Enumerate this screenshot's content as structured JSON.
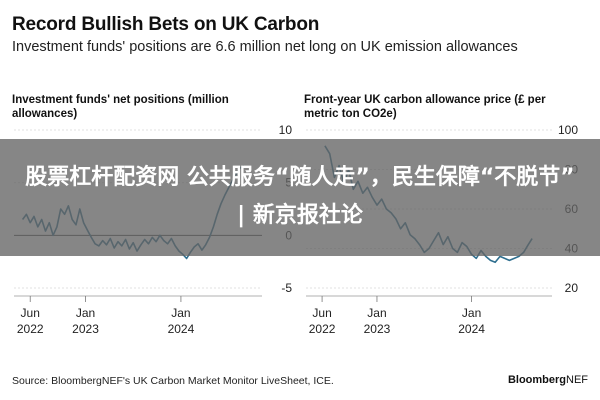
{
  "header": {
    "title": "Record Bullish Bets on UK Carbon",
    "subtitle": "Investment funds' positions are 6.6 million net long on UK emission allowances"
  },
  "chart_data": [
    {
      "type": "line",
      "title": "Investment funds' net positions (million allowances)",
      "y_axis_side": "right",
      "ylim": [
        -5,
        10
      ],
      "y_ticks": [
        10,
        5,
        0,
        -5
      ],
      "x_ticks": [
        {
          "label_top": "Jun",
          "label_bottom": "2022",
          "t": 2022.42
        },
        {
          "label_top": "Jan",
          "label_bottom": "2023",
          "t": 2023.0
        },
        {
          "label_top": "Jan",
          "label_bottom": "2024",
          "t": 2024.0
        }
      ],
      "xlim": [
        2022.25,
        2024.85
      ],
      "series": [
        {
          "name": "Net positions",
          "x": [
            2022.34,
            2022.38,
            2022.42,
            2022.46,
            2022.5,
            2022.54,
            2022.58,
            2022.62,
            2022.66,
            2022.7,
            2022.74,
            2022.78,
            2022.82,
            2022.86,
            2022.9,
            2022.94,
            2022.98,
            2023.02,
            2023.06,
            2023.1,
            2023.14,
            2023.18,
            2023.22,
            2023.26,
            2023.3,
            2023.34,
            2023.38,
            2023.42,
            2023.46,
            2023.5,
            2023.54,
            2023.58,
            2023.62,
            2023.66,
            2023.7,
            2023.74,
            2023.78,
            2023.82,
            2023.86,
            2023.9,
            2023.94,
            2023.98,
            2024.02,
            2024.06,
            2024.1,
            2024.14,
            2024.18,
            2024.22,
            2024.26,
            2024.3,
            2024.34,
            2024.38,
            2024.42,
            2024.46,
            2024.5,
            2024.54,
            2024.58,
            2024.62,
            2024.66
          ],
          "values": [
            1.5,
            2.0,
            1.2,
            1.8,
            0.8,
            1.5,
            0.4,
            1.2,
            0.0,
            0.8,
            2.5,
            2.0,
            2.8,
            1.5,
            1.0,
            2.5,
            1.2,
            0.5,
            -0.2,
            -0.8,
            -1.0,
            -0.5,
            -0.9,
            -0.3,
            -1.2,
            -0.6,
            -1.0,
            -0.4,
            -1.3,
            -0.7,
            -1.5,
            -0.9,
            -0.4,
            -0.8,
            -0.2,
            -0.6,
            0.0,
            -0.5,
            -0.8,
            -0.3,
            -1.0,
            -1.5,
            -1.8,
            -2.2,
            -1.6,
            -1.1,
            -0.8,
            -1.4,
            -0.9,
            -0.2,
            0.8,
            2.0,
            3.0,
            3.8,
            4.5,
            5.2,
            5.8,
            6.4,
            6.6
          ]
        }
      ]
    },
    {
      "type": "line",
      "title": "Front-year UK carbon allowance price (£ per metric ton CO2e)",
      "y_axis_side": "right",
      "ylim": [
        20,
        100
      ],
      "y_ticks": [
        100,
        80,
        60,
        40,
        20
      ],
      "x_ticks": [
        {
          "label_top": "Jun",
          "label_bottom": "2022",
          "t": 2022.42
        },
        {
          "label_top": "Jan",
          "label_bottom": "2023",
          "t": 2023.0
        },
        {
          "label_top": "Jan",
          "label_bottom": "2024",
          "t": 2024.0
        }
      ],
      "xlim": [
        2022.25,
        2024.85
      ],
      "series": [
        {
          "name": "Price",
          "x": [
            2022.45,
            2022.5,
            2022.55,
            2022.6,
            2022.65,
            2022.7,
            2022.75,
            2022.8,
            2022.85,
            2022.9,
            2022.95,
            2023.0,
            2023.05,
            2023.1,
            2023.15,
            2023.2,
            2023.25,
            2023.3,
            2023.35,
            2023.4,
            2023.45,
            2023.5,
            2023.55,
            2023.6,
            2023.65,
            2023.7,
            2023.75,
            2023.8,
            2023.85,
            2023.9,
            2023.95,
            2024.0,
            2024.05,
            2024.1,
            2024.15,
            2024.2,
            2024.25,
            2024.3,
            2024.35,
            2024.4,
            2024.45,
            2024.5,
            2024.55,
            2024.6,
            2024.64
          ],
          "values": [
            92,
            88,
            76,
            82,
            73,
            80,
            70,
            74,
            68,
            71,
            66,
            62,
            65,
            60,
            58,
            55,
            50,
            53,
            47,
            45,
            42,
            38,
            40,
            44,
            48,
            42,
            46,
            40,
            38,
            43,
            41,
            37,
            35,
            39,
            36,
            34,
            33,
            36,
            35,
            34,
            35,
            36,
            38,
            42,
            45
          ]
        }
      ]
    }
  ],
  "footer": {
    "source": "Source: BloombergNEF's UK Carbon Market Monitor LiveSheet, ICE.",
    "brand_bold": "Bloomberg",
    "brand_rest": "NEF"
  },
  "overlay": {
    "banner_text": "股票杠杆配资网 公共服务“随人走”，民生保障“不脱节” | 新京报社论"
  },
  "colors": {
    "line": "#2f6f8f",
    "gridline": "#d6d6d6",
    "zero_line": "#444444",
    "banner_bg": "#646464"
  }
}
